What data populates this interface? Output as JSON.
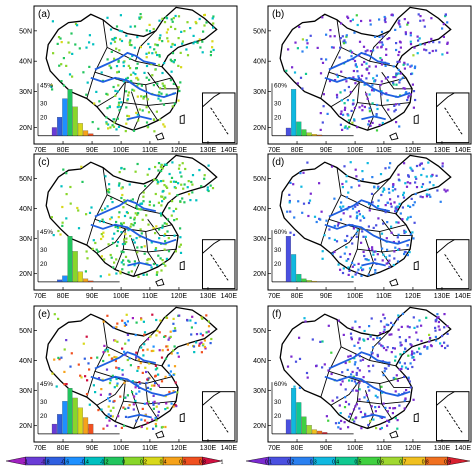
{
  "panels": [
    {
      "label": "(a)",
      "hist_label": "45%",
      "hist_ticks": [
        "30",
        "20"
      ],
      "hist_values": [
        0.08,
        0.18,
        0.36,
        0.45,
        0.28,
        0.12,
        0.05,
        0.02
      ]
    },
    {
      "label": "(b)",
      "hist_label": "60%",
      "hist_ticks": [
        "30",
        "20"
      ],
      "hist_values": [
        0.1,
        0.6,
        0.18,
        0.08,
        0.04,
        0.02,
        0.01,
        0.0
      ]
    },
    {
      "label": "(c)",
      "hist_label": "45%",
      "hist_ticks": [
        "30",
        "20"
      ],
      "hist_values": [
        0.0,
        0.02,
        0.06,
        0.45,
        0.3,
        0.1,
        0.03,
        0.01
      ]
    },
    {
      "label": "(d)",
      "hist_label": "60%",
      "hist_ticks": [
        "30",
        "20"
      ],
      "hist_values": [
        0.6,
        0.36,
        0.1,
        0.04,
        0.02,
        0.01,
        0.0,
        0.0
      ]
    },
    {
      "label": "(e)",
      "hist_label": "45%",
      "hist_ticks": [
        "30",
        "20"
      ],
      "hist_values": [
        0.06,
        0.12,
        0.2,
        0.28,
        0.22,
        0.16,
        0.1,
        0.06
      ]
    },
    {
      "label": "(f)",
      "hist_label": "60%",
      "hist_ticks": [
        "30",
        "20"
      ],
      "hist_values": [
        0.1,
        0.32,
        0.22,
        0.12,
        0.06,
        0.03,
        0.02,
        0.01
      ]
    }
  ],
  "lat_ticks": [
    "50N",
    "40N",
    "30N",
    "20N"
  ],
  "lon_ticks": [
    "70E",
    "80E",
    "90E",
    "100E",
    "110E",
    "120E",
    "130E",
    "140E"
  ],
  "colorbar_left": {
    "labels": [
      "-1",
      "-0.8",
      "-0.6",
      "-0.4",
      "-0.2",
      "0",
      "0.2",
      "0.4",
      "0.6",
      "0.8",
      "1"
    ]
  },
  "colorbar_right": {
    "labels": [
      "0.1",
      "0.2",
      "0.3",
      "0.4",
      "0.5",
      "0.6",
      "0.7",
      "0.8",
      "0.9"
    ]
  },
  "colors": {
    "scale_left": [
      "#a020c0",
      "#6a3cd6",
      "#2f5fe0",
      "#1e90ff",
      "#00c0c0",
      "#22c55e",
      "#88d62a",
      "#d8d81a",
      "#f6a21a",
      "#f05020",
      "#d01040"
    ],
    "scale_right": [
      "#7a2ad0",
      "#4a50e0",
      "#2a80f0",
      "#10b8e0",
      "#10c890",
      "#40d040",
      "#a0d830",
      "#f0c020",
      "#f07020",
      "#d82030"
    ],
    "river": "#1f5fe0",
    "boundary": "#000000"
  }
}
